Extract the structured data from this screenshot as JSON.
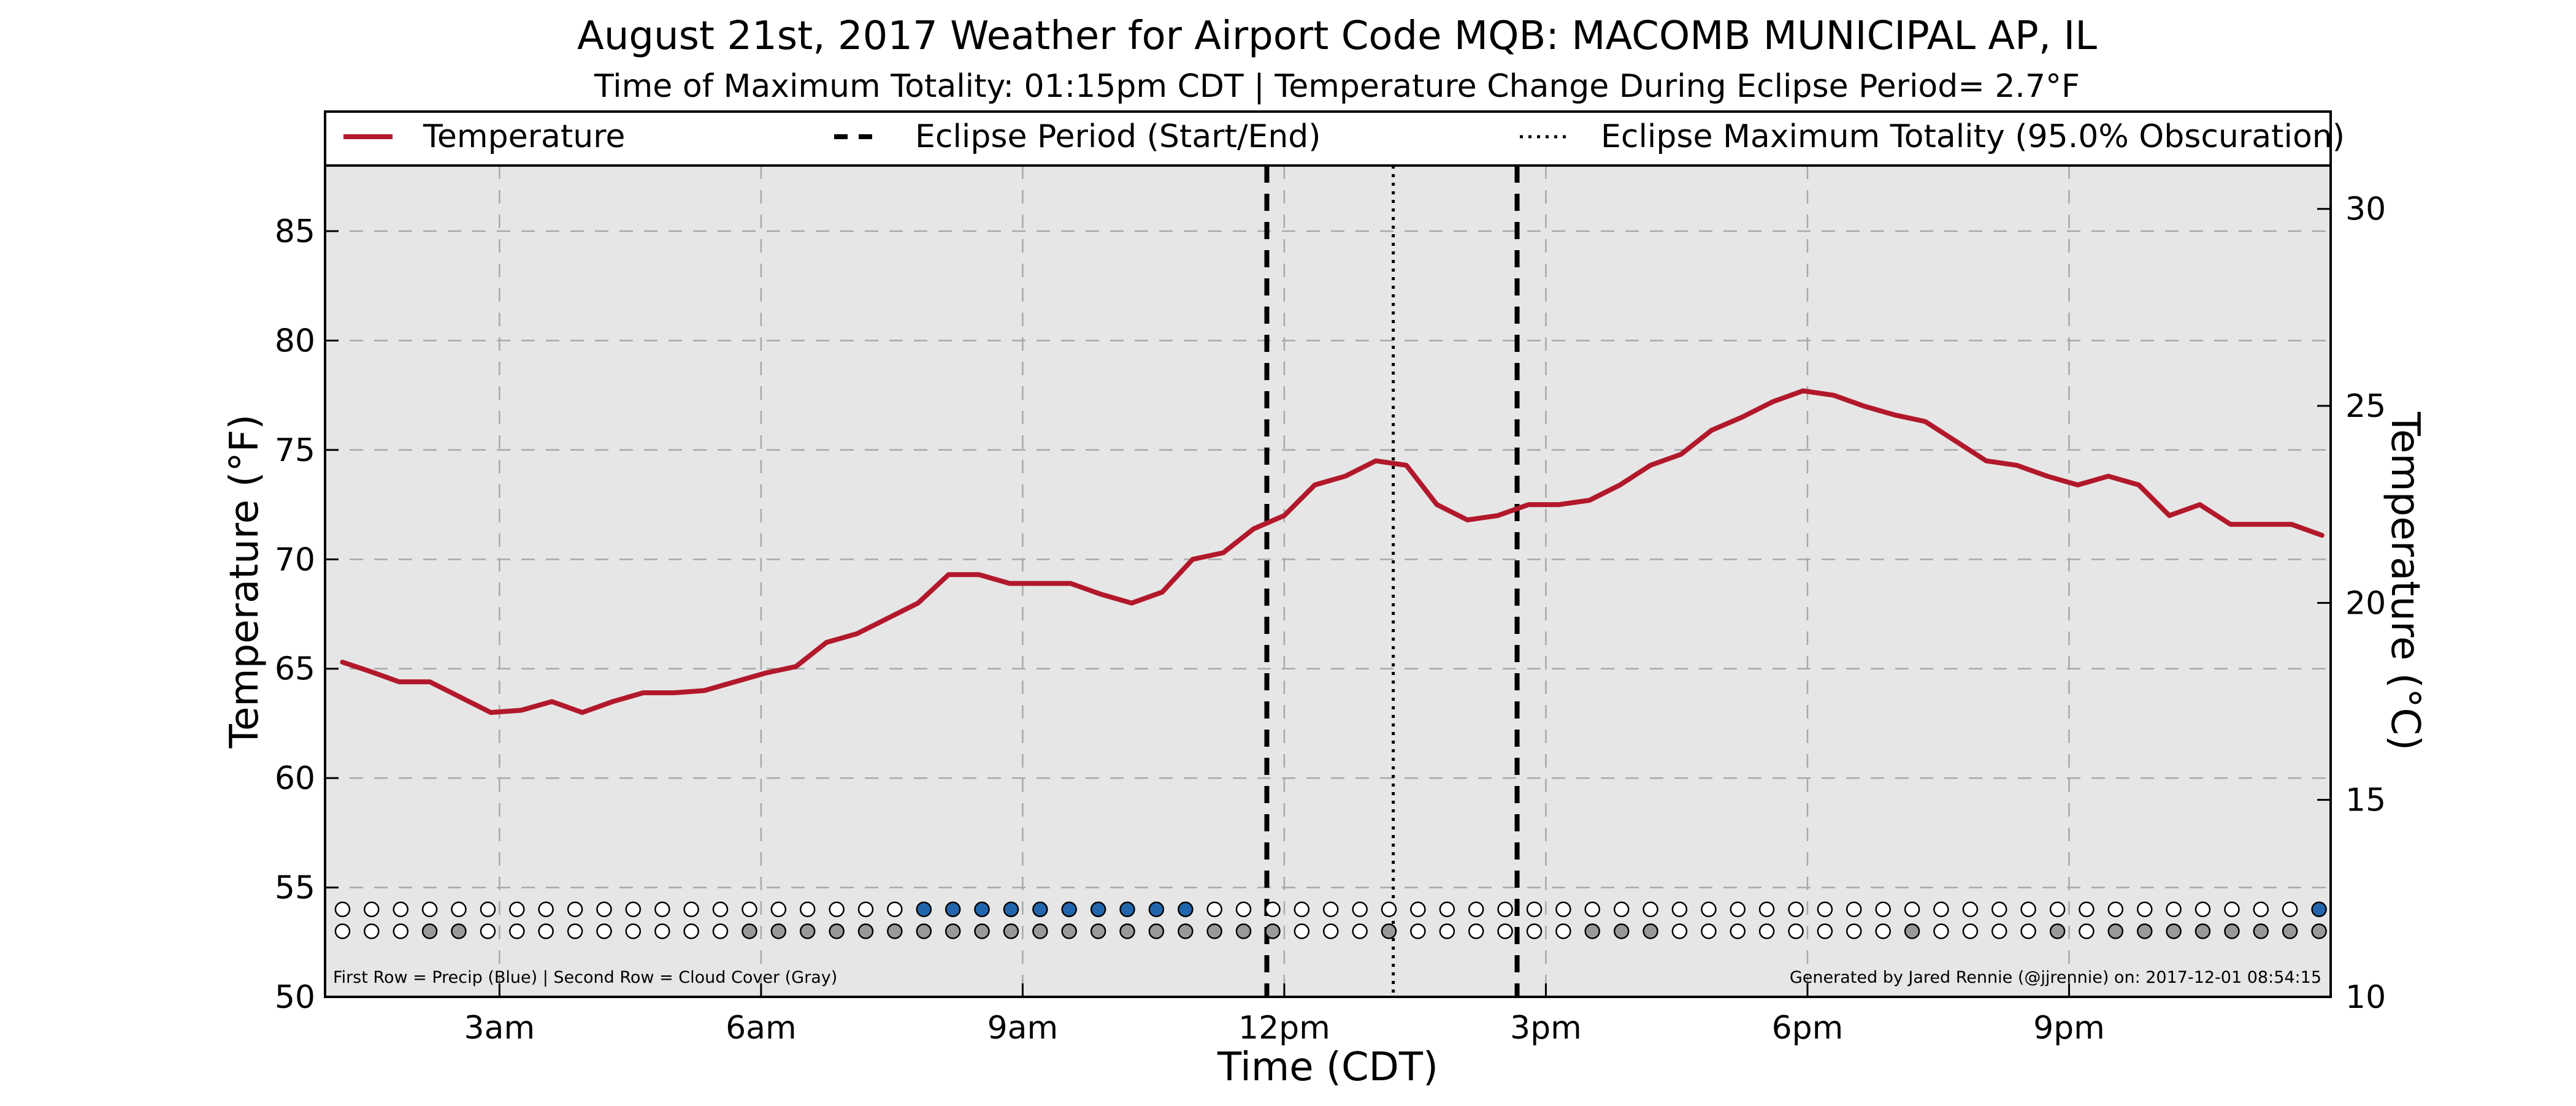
{
  "chart_data": {
    "type": "line",
    "title": "August 21st, 2017 Weather for Airport Code MQB: MACOMB MUNICIPAL AP, IL",
    "subtitle": "Time of Maximum Totality: 01:15pm CDT | Temperature Change During Eclipse Period= 2.7°F",
    "xlabel": "Time (CDT)",
    "ylabel": "Temperature (°F)",
    "ylabel_right": "Temperature (°C)",
    "xlim": [
      1.0,
      24.0
    ],
    "ylim": [
      50,
      88
    ],
    "ylim_right": [
      10,
      31.1
    ],
    "x_ticks": [
      {
        "x": 3,
        "label": "3am"
      },
      {
        "x": 6,
        "label": "6am"
      },
      {
        "x": 9,
        "label": "9am"
      },
      {
        "x": 12,
        "label": "12pm"
      },
      {
        "x": 15,
        "label": "3pm"
      },
      {
        "x": 18,
        "label": "6pm"
      },
      {
        "x": 21,
        "label": "9pm"
      }
    ],
    "y_ticks": [
      50,
      55,
      60,
      65,
      70,
      75,
      80,
      85
    ],
    "y_ticks_right": [
      10,
      15,
      20,
      25,
      30
    ],
    "grid": true,
    "background": "#e6e6e6",
    "legend": {
      "placement": "top",
      "items": [
        {
          "label": "Temperature",
          "style": "solid",
          "color": "#b2182b"
        },
        {
          "label": "Eclipse Period (Start/End)",
          "style": "dashed",
          "color": "#000000"
        },
        {
          "label": "Eclipse Maximum Totality (95.0% Obscuration)",
          "style": "dotted",
          "color": "#000000"
        }
      ]
    },
    "series": [
      {
        "name": "Temperature",
        "color": "#b2182b",
        "x": [
          1.2,
          1.5,
          1.85,
          2.2,
          2.55,
          2.9,
          3.25,
          3.6,
          3.95,
          4.3,
          4.65,
          5.0,
          5.35,
          5.7,
          6.05,
          6.4,
          6.75,
          7.1,
          7.45,
          7.8,
          8.15,
          8.5,
          8.85,
          9.2,
          9.55,
          9.9,
          10.25,
          10.6,
          10.95,
          11.3,
          11.65,
          12.0,
          12.35,
          12.7,
          13.05,
          13.4,
          13.75,
          14.1,
          14.45,
          14.8,
          15.15,
          15.5,
          15.85,
          16.2,
          16.55,
          16.9,
          17.25,
          17.6,
          17.95,
          18.3,
          18.65,
          19.0,
          19.35,
          19.7,
          20.05,
          20.4,
          20.75,
          21.1,
          21.45,
          21.8,
          22.15,
          22.5,
          22.85,
          23.2,
          23.55,
          23.9
        ],
        "values": [
          65.3,
          64.9,
          64.4,
          64.4,
          63.7,
          63.0,
          63.1,
          63.5,
          63.0,
          63.5,
          63.9,
          63.9,
          64.0,
          64.4,
          64.8,
          65.1,
          66.2,
          66.6,
          67.3,
          68.0,
          69.3,
          69.3,
          68.9,
          68.9,
          68.9,
          68.4,
          68.0,
          68.5,
          70.0,
          70.3,
          71.4,
          72.0,
          73.4,
          73.8,
          74.5,
          74.3,
          72.5,
          71.8,
          72.0,
          72.5,
          72.5,
          72.7,
          73.4,
          74.3,
          74.8,
          75.9,
          76.5,
          77.2,
          77.7,
          77.5,
          77.0,
          76.6,
          76.3,
          75.4,
          74.5,
          74.3,
          73.8,
          73.4,
          73.8,
          73.4,
          72.0,
          72.5,
          71.6,
          71.6,
          71.6,
          71.1
        ]
      }
    ],
    "eclipse_start_x": 11.8,
    "eclipse_end_x": 14.67,
    "eclipse_max_x": 13.25,
    "indicator_rows": {
      "x": [
        1.2,
        1.533,
        1.867,
        2.2,
        2.533,
        2.867,
        3.2,
        3.533,
        3.867,
        4.2,
        4.533,
        4.867,
        5.2,
        5.533,
        5.867,
        6.2,
        6.533,
        6.867,
        7.2,
        7.533,
        7.867,
        8.2,
        8.533,
        8.867,
        9.2,
        9.533,
        9.867,
        10.2,
        10.533,
        10.867,
        11.2,
        11.533,
        11.867,
        12.2,
        12.533,
        12.867,
        13.2,
        13.533,
        13.867,
        14.2,
        14.533,
        14.867,
        15.2,
        15.533,
        15.867,
        16.2,
        16.533,
        16.867,
        17.2,
        17.533,
        17.867,
        18.2,
        18.533,
        18.867,
        19.2,
        19.533,
        19.867,
        20.2,
        20.533,
        20.867,
        21.2,
        21.533,
        21.867,
        22.2,
        22.533,
        22.867,
        23.2,
        23.533,
        23.867
      ],
      "precip": [
        0,
        0,
        0,
        0,
        0,
        0,
        0,
        0,
        0,
        0,
        0,
        0,
        0,
        0,
        0,
        0,
        0,
        0,
        0,
        0,
        1,
        1,
        1,
        1,
        1,
        1,
        1,
        1,
        1,
        1,
        0,
        0,
        0,
        0,
        0,
        0,
        0,
        0,
        0,
        0,
        0,
        0,
        0,
        0,
        0,
        0,
        0,
        0,
        0,
        0,
        0,
        0,
        0,
        0,
        0,
        0,
        0,
        0,
        0,
        0,
        0,
        0,
        0,
        0,
        0,
        0,
        0,
        0,
        1
      ],
      "cloud": [
        0,
        0,
        0,
        1,
        1,
        0,
        0,
        0,
        0,
        0,
        0,
        0,
        0,
        0,
        1,
        1,
        1,
        1,
        1,
        1,
        1,
        1,
        1,
        1,
        1,
        1,
        1,
        1,
        1,
        1,
        1,
        1,
        1,
        0,
        0,
        0,
        1,
        0,
        0,
        0,
        0,
        0,
        0,
        1,
        1,
        1,
        0,
        0,
        0,
        0,
        0,
        0,
        0,
        0,
        1,
        0,
        0,
        0,
        0,
        1,
        0,
        1,
        1,
        1,
        1,
        1,
        1,
        1,
        1
      ],
      "precip_row_y": 54.0,
      "cloud_row_y": 53.0,
      "precip_color": "#2166ac",
      "cloud_color": "#999999"
    },
    "footnote_left": "First Row = Precip (Blue) | Second Row = Cloud Cover (Gray)",
    "footnote_right": "Generated by Jared Rennie (@jjrennie) on: 2017-12-01 08:54:15"
  }
}
